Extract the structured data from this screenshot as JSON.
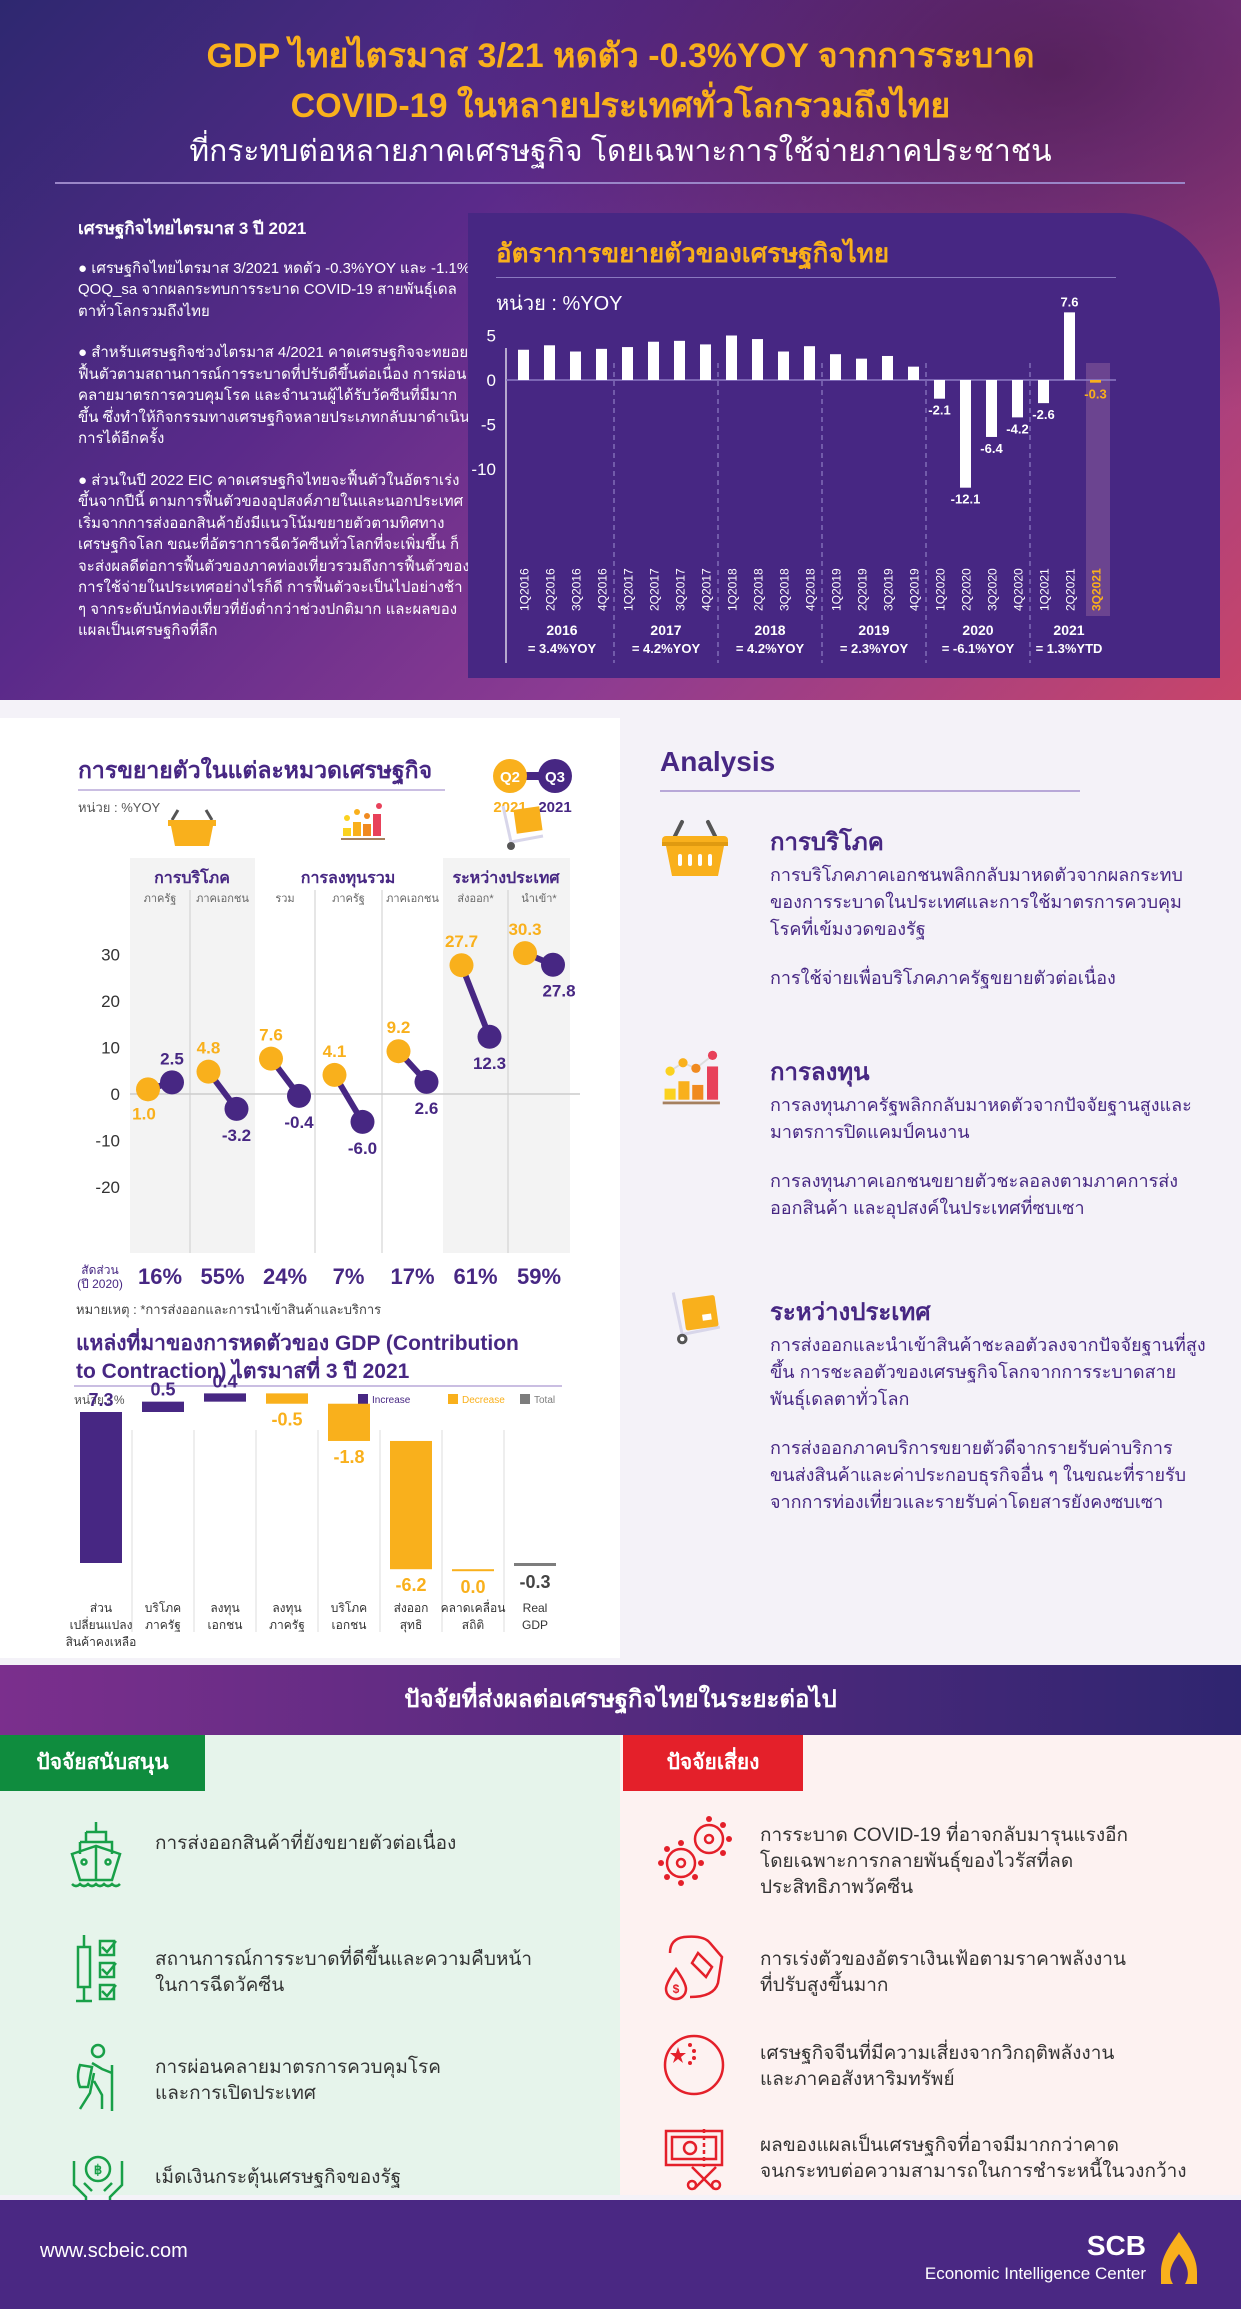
{
  "header": {
    "title_line1": "GDP ไทยไตรมาส 3/21 หดตัว -0.3%YOY จากการระบาด",
    "title_line2": "COVID-19 ในหลายประเทศทั่วโลกรวมถึงไทย",
    "subtitle": "ที่กระทบต่อหลายภาคเศรษฐกิจ โดยเฉพาะการใช้จ่ายภาคประชาชน"
  },
  "summary": {
    "heading": "เศรษฐกิจไทยไตรมาส 3 ปี 2021",
    "paragraphs": [
      "● เศรษฐกิจไทยไตรมาส 3/2021 หดตัว -0.3%YOY และ -1.1% QOQ_sa จากผลกระทบการระบาด COVID-19 สายพันธุ์เดลตาทั่วโลกรวมถึงไทย",
      "● สำหรับเศรษฐกิจช่วงไตรมาส 4/2021 คาดเศรษฐกิจจะทยอยฟื้นตัวตามสถานการณ์การระบาดที่ปรับดีขึ้นต่อเนื่อง การผ่อนคลายมาตรการควบคุมโรค และจำนวนผู้ได้รับวัคซีนที่มีมากขึ้น ซึ่งทำให้กิจกรรมทางเศรษฐกิจหลายประเภทกลับมาดำเนินการได้อีกครั้ง",
      "● ส่วนในปี 2022 EIC คาดเศรษฐกิจไทยจะฟื้นตัวในอัตราเร่งขึ้นจากปีนี้ ตามการฟื้นตัวของอุปสงค์ภายในและนอกประเทศ เริ่มจากการส่งออกสินค้ายังมีแนวโน้มขยายตัวตามทิศทางเศรษฐกิจโลก ขณะที่อัตราการฉีดวัคซีนทั่วโลกที่จะเพิ่มขึ้น ก็จะส่งผลดีต่อการฟื้นตัวของภาคท่องเที่ยวรวมถึงการฟื้นตัวของการใช้จ่ายในประเทศอย่างไรก็ดี การฟื้นตัวจะเป็นไปอย่างช้า ๆ จากระดับนักท่องเที่ยวที่ยังต่ำกว่าช่วงปกติมาก และผลของแผลเป็นเศรษฐกิจที่ลึก"
    ]
  },
  "growth_chart": {
    "title": "อัตราการขยายตัวของเศรษฐกิจไทย",
    "unit": "หน่วย : %YOY"
  },
  "category_chart": {
    "title": "การขยายตัวในแต่ละหมวดเศรษฐกิจ",
    "unit": "หน่วย : %YOY",
    "legend": {
      "q2": "Q2",
      "q2_year": "2021",
      "q3": "Q3",
      "q3_year": "2021"
    },
    "groups": [
      "การบริโภค",
      "การลงทุนรวม",
      "ระหว่างประเทศ"
    ],
    "share_label_line1": "สัดส่วน",
    "share_label_line2": "(ปี 2020)",
    "note": "หมายเหตุ : *การส่งออกและการนำเข้าสินค้าและบริการ"
  },
  "contribution_chart": {
    "title_line1": "แหล่งที่มาของการหดตัวของ GDP (Contribution",
    "title_line2": "to Contraction) ไตรมาสที่ 3 ปี 2021",
    "unit": "หน่วย : %",
    "legend": [
      "Increase",
      "Decrease",
      "Total"
    ]
  },
  "analysis": {
    "title": "Analysis",
    "items": [
      {
        "title": "การบริโภค",
        "paragraphs": [
          "การบริโภคภาคเอกชนพลิกกลับมาหดตัวจากผลกระทบของการระบาดในประเทศและการใช้มาตรการควบคุมโรคที่เข้มงวดของรัฐ",
          "การใช้จ่ายเพื่อบริโภคภาครัฐขยายตัวต่อเนื่อง"
        ]
      },
      {
        "title": "การลงทุน",
        "paragraphs": [
          "การลงทุนภาครัฐพลิกกลับมาหดตัวจากปัจจัยฐานสูงและมาตรการปิดแคมป์คนงาน",
          "การลงทุนภาคเอกชนขยายตัวชะลอลงตามภาคการส่งออกสินค้า และอุปสงค์ในประเทศที่ซบเซา"
        ]
      },
      {
        "title": "ระหว่างประเทศ",
        "paragraphs": [
          "การส่งออกและนำเข้าสินค้าชะลอตัวลงจากปัจจัยฐานที่สูงขึ้น การชะลอตัวของเศรษฐกิจโลกจากการระบาดสายพันธุ์เดลตาทั่วโลก",
          "การส่งออกภาคบริการขยายตัวดีจากรายรับค่าบริการขนส่งสินค้าและค่าประกอบธุรกิจอื่น ๆ ในขณะที่รายรับจากการท่องเที่ยวและรายรับค่าโดยสารยังคงซบเซา"
        ]
      }
    ]
  },
  "factors": {
    "title": "ปัจจัยที่ส่งผลต่อเศรษฐกิจไทยในระยะต่อไป",
    "support": {
      "label": "ปัจจัยสนับสนุน",
      "items": [
        {
          "icon": "ship-icon",
          "text": "การส่งออกสินค้าที่ยังขยายตัวต่อเนื่อง"
        },
        {
          "icon": "vaccine-checklist-icon",
          "text": "สถานการณ์การระบาดที่ดีขึ้นและความคืบหน้า\nในการฉีดวัคซีน"
        },
        {
          "icon": "hiker-icon",
          "text": "การผ่อนคลายมาตรการควบคุมโรค\nและการเปิดประเทศ"
        },
        {
          "icon": "baht-hands-icon",
          "text": "เม็ดเงินกระตุ้นเศรษฐกิจของรัฐ"
        }
      ]
    },
    "risk": {
      "label": "ปัจจัยเสี่ยง",
      "items": [
        {
          "icon": "virus-icon",
          "text": "การระบาด COVID-19 ที่อาจกลับมารุนแรงอีก\nโดยเฉพาะการกลายพันธุ์ของไวรัสที่ลด\nประสิทธิภาพวัคซีน"
        },
        {
          "icon": "fuel-price-icon",
          "text": "การเร่งตัวของอัตราเงินเฟ้อตามราคาพลังงาน\nที่ปรับสูงขึ้นมาก"
        },
        {
          "icon": "china-flag-icon",
          "text": "เศรษฐกิจจีนที่มีความเสี่ยงจากวิกฤติพลังงาน\nและภาคอสังหาริมทรัพย์"
        },
        {
          "icon": "debt-cut-icon",
          "text": "ผลของแผลเป็นเศรษฐกิจที่อาจมีมากกว่าคาด\nจนกระทบต่อความสามารถในการชำระหนี้ในวงกว้าง"
        }
      ]
    }
  },
  "footer": {
    "url": "www.scbeic.com",
    "brand": "SCB",
    "brand_sub": "Economic Intelligence Center"
  },
  "colors": {
    "purple": "#472783",
    "orange": "#f9b01c",
    "green": "#0f8c3e",
    "red": "#e4202a",
    "gray": "#7d7d7d"
  },
  "chart_data": [
    {
      "type": "bar",
      "title": "อัตราการขยายตัวของเศรษฐกิจไทย",
      "ylabel": "หน่วย : %YOY",
      "ylim": [
        -14,
        8
      ],
      "yticks": [
        5,
        0,
        -5,
        -10
      ],
      "categories": [
        "1Q2016",
        "2Q2016",
        "3Q2016",
        "4Q2016",
        "1Q2017",
        "2Q2017",
        "3Q2017",
        "4Q2017",
        "1Q2018",
        "2Q2018",
        "3Q2018",
        "4Q2018",
        "1Q2019",
        "2Q2019",
        "3Q2019",
        "4Q2019",
        "1Q2020",
        "2Q2020",
        "3Q2020",
        "4Q2020",
        "1Q2021",
        "2Q2021",
        "3Q2021"
      ],
      "values": [
        3.4,
        3.9,
        3.2,
        3.5,
        3.7,
        4.3,
        4.4,
        4.0,
        5.0,
        4.6,
        3.2,
        3.8,
        2.9,
        2.4,
        2.7,
        1.5,
        -2.1,
        -12.1,
        -6.4,
        -4.2,
        -2.6,
        7.6,
        -0.3
      ],
      "data_labels": {
        "1Q2020": "-2.1",
        "2Q2020": "-12.1",
        "3Q2020": "-6.4",
        "4Q2020": "-4.2",
        "1Q2021": "-2.6",
        "2Q2021": "7.6",
        "3Q2021": "-0.3"
      },
      "highlight": "3Q2021",
      "annual": [
        {
          "year": "2016",
          "label": "= 3.4%YOY"
        },
        {
          "year": "2017",
          "label": "= 4.2%YOY"
        },
        {
          "year": "2018",
          "label": "= 4.2%YOY"
        },
        {
          "year": "2019",
          "label": "= 2.3%YOY"
        },
        {
          "year": "2020",
          "label": "= -6.1%YOY"
        },
        {
          "year": "2021",
          "label": "= 1.3%YTD"
        }
      ]
    },
    {
      "type": "scatter",
      "title": "การขยายตัวในแต่ละหมวดเศรษฐกิจ",
      "ylabel": "หน่วย : %YOY",
      "ylim": [
        -20,
        30
      ],
      "yticks": [
        30,
        20,
        10,
        0,
        -10,
        -20
      ],
      "categories": [
        "ภาครัฐ",
        "ภาคเอกชน",
        "รวม",
        "ภาครัฐ",
        "ภาคเอกชน",
        "ส่งออก*",
        "นำเข้า*"
      ],
      "groups": [
        {
          "name": "การบริโภค",
          "members": [
            0,
            1
          ]
        },
        {
          "name": "การลงทุนรวม",
          "members": [
            2,
            3,
            4
          ]
        },
        {
          "name": "ระหว่างประเทศ",
          "members": [
            5,
            6
          ]
        }
      ],
      "series": [
        {
          "name": "Q2 2021",
          "color": "#f9b01c",
          "values": [
            1.0,
            4.8,
            7.6,
            4.1,
            9.2,
            27.7,
            30.3
          ]
        },
        {
          "name": "Q3 2021",
          "color": "#472783",
          "values": [
            2.5,
            -3.2,
            -0.4,
            -6.0,
            2.6,
            12.3,
            27.8
          ]
        }
      ],
      "shares_2020": [
        "16%",
        "55%",
        "24%",
        "7%",
        "17%",
        "61%",
        "59%"
      ]
    },
    {
      "type": "bar",
      "subtype": "waterfall",
      "title": "แหล่งที่มาของการหดตัวของ GDP (Contribution to Contraction) ไตรมาสที่ 3 ปี 2021",
      "ylabel": "หน่วย : %",
      "legend": [
        "Increase",
        "Decrease",
        "Total"
      ],
      "categories": [
        "ส่วนเปลี่ยนแปลงสินค้าคงเหลือ",
        "บริโภคภาครัฐ",
        "ลงทุนเอกชน",
        "ลงทุนภาครัฐ",
        "บริโภคเอกชน",
        "ส่งออกสุทธิ",
        "คลาดเคลื่อนสถิติ",
        "Real GDP"
      ],
      "category_lines": [
        [
          "ส่วน",
          "เปลี่ยนแปลง",
          "สินค้าคงเหลือ"
        ],
        [
          "บริโภค",
          "ภาครัฐ"
        ],
        [
          "ลงทุน",
          "เอกชน"
        ],
        [
          "ลงทุน",
          "ภาครัฐ"
        ],
        [
          "บริโภค",
          "เอกชน"
        ],
        [
          "ส่งออก",
          "สุทธิ"
        ],
        [
          "คลาดเคลื่อน",
          "สถิติ"
        ],
        [
          "Real",
          "GDP"
        ]
      ],
      "values": [
        7.3,
        0.5,
        0.4,
        -0.5,
        -1.8,
        -6.2,
        0.0,
        -0.3
      ],
      "labels": [
        "7.3",
        "0.5",
        "0.4",
        "-0.5",
        "-1.8",
        "-6.2",
        "0.0",
        "-0.3"
      ],
      "kinds": [
        "increase",
        "increase",
        "increase",
        "decrease",
        "decrease",
        "decrease",
        "decrease",
        "total"
      ]
    }
  ]
}
